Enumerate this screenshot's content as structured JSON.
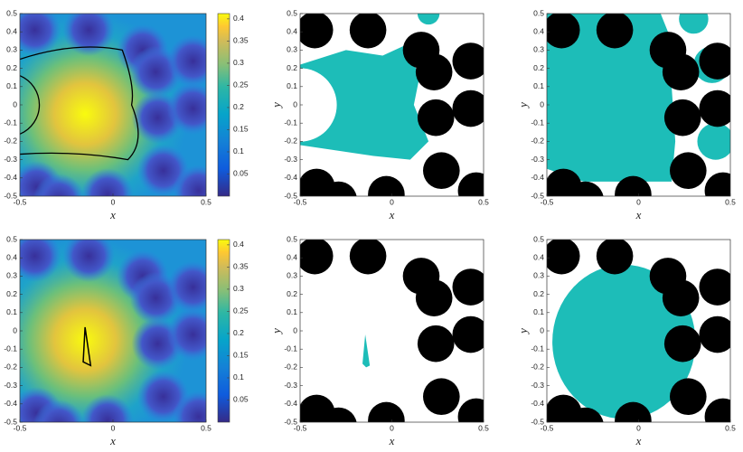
{
  "chart_data": [
    {
      "type": "heatmap",
      "xlabel": "x",
      "xlim": [
        -0.5,
        0.5
      ],
      "ylim": [
        -0.5,
        0.5
      ],
      "xticks": [
        -0.5,
        0,
        0.5
      ],
      "yticks": [
        -0.5,
        -0.4,
        -0.3,
        -0.2,
        -0.1,
        0,
        0.1,
        0.2,
        0.3,
        0.4,
        0.5
      ],
      "colorbar": {
        "clim": [
          0,
          0.412
        ],
        "ticks": [
          0.05,
          0.1,
          0.15,
          0.2,
          0.25,
          0.3,
          0.35,
          0.4
        ]
      },
      "obstacles": {
        "radius": 0.1,
        "x": [
          -0.42,
          -0.13,
          0.16,
          0.23,
          0.43,
          0.24,
          0.43,
          0.27,
          -0.41,
          -0.29,
          -0.03,
          0.46
        ],
        "y": [
          0.41,
          0.41,
          0.3,
          0.18,
          0.24,
          -0.07,
          -0.02,
          -0.36,
          -0.45,
          -0.52,
          -0.49,
          -0.47
        ]
      }
    },
    {
      "type": "region",
      "xlabel": "x",
      "ylabel": "y",
      "xlim": [
        -0.5,
        0.5
      ],
      "ylim": [
        -0.5,
        0.5
      ],
      "xticks": [
        -0.5,
        0,
        0.5
      ],
      "yticks": [
        -0.5,
        -0.4,
        -0.3,
        -0.2,
        -0.1,
        0,
        0.1,
        0.2,
        0.3,
        0.4,
        0.5
      ],
      "obstacles": {
        "radius": 0.1,
        "x": [
          -0.42,
          -0.13,
          0.16,
          0.23,
          0.43,
          0.24,
          0.43,
          0.27,
          -0.41,
          -0.29,
          -0.03,
          0.46
        ],
        "y": [
          0.41,
          0.41,
          0.3,
          0.18,
          0.24,
          -0.07,
          -0.02,
          -0.36,
          -0.45,
          -0.52,
          -0.49,
          -0.47
        ]
      }
    },
    {
      "type": "region",
      "xlabel": "x",
      "ylabel": "y",
      "xlim": [
        -0.5,
        0.5
      ],
      "ylim": [
        -0.5,
        0.5
      ],
      "xticks": [
        -0.5,
        0,
        0.5
      ],
      "yticks": [
        -0.5,
        -0.4,
        -0.3,
        -0.2,
        -0.1,
        0,
        0.1,
        0.2,
        0.3,
        0.4,
        0.5
      ],
      "obstacles": {
        "radius": 0.1,
        "x": [
          -0.42,
          -0.13,
          0.16,
          0.23,
          0.43,
          0.24,
          0.43,
          0.27,
          -0.41,
          -0.29,
          -0.03,
          0.46
        ],
        "y": [
          0.41,
          0.41,
          0.3,
          0.18,
          0.24,
          -0.07,
          -0.02,
          -0.36,
          -0.45,
          -0.52,
          -0.49,
          -0.47
        ]
      }
    },
    {
      "type": "heatmap",
      "xlabel": "x",
      "xlim": [
        -0.5,
        0.5
      ],
      "ylim": [
        -0.5,
        0.5
      ],
      "xticks": [
        -0.5,
        0,
        0.5
      ],
      "yticks": [
        -0.5,
        -0.4,
        -0.3,
        -0.2,
        -0.1,
        0,
        0.1,
        0.2,
        0.3,
        0.4,
        0.5
      ],
      "colorbar": {
        "clim": [
          0,
          0.412
        ],
        "ticks": [
          0.05,
          0.1,
          0.15,
          0.2,
          0.25,
          0.3,
          0.35,
          0.4
        ]
      },
      "obstacles": {
        "radius": 0.1,
        "x": [
          -0.42,
          -0.13,
          0.16,
          0.23,
          0.43,
          0.24,
          0.43,
          0.27,
          -0.41,
          -0.29,
          -0.03,
          0.46
        ],
        "y": [
          0.41,
          0.41,
          0.3,
          0.18,
          0.24,
          -0.07,
          -0.02,
          -0.36,
          -0.45,
          -0.52,
          -0.49,
          -0.47
        ]
      }
    },
    {
      "type": "region",
      "xlabel": "x",
      "ylabel": "y",
      "xlim": [
        -0.5,
        0.5
      ],
      "ylim": [
        -0.5,
        0.5
      ],
      "xticks": [
        -0.5,
        0,
        0.5
      ],
      "yticks": [
        -0.5,
        -0.4,
        -0.3,
        -0.2,
        -0.1,
        0,
        0.1,
        0.2,
        0.3,
        0.4,
        0.5
      ],
      "obstacles": {
        "radius": 0.1,
        "x": [
          -0.42,
          -0.13,
          0.16,
          0.23,
          0.43,
          0.24,
          0.43,
          0.27,
          -0.41,
          -0.29,
          -0.03,
          0.46
        ],
        "y": [
          0.41,
          0.41,
          0.3,
          0.18,
          0.24,
          -0.07,
          -0.02,
          -0.36,
          -0.45,
          -0.52,
          -0.49,
          -0.47
        ]
      }
    },
    {
      "type": "region",
      "xlabel": "x",
      "ylabel": "y",
      "xlim": [
        -0.5,
        0.5
      ],
      "ylim": [
        -0.5,
        0.5
      ],
      "xticks": [
        -0.5,
        0,
        0.5
      ],
      "yticks": [
        -0.5,
        -0.4,
        -0.3,
        -0.2,
        -0.1,
        0,
        0.1,
        0.2,
        0.3,
        0.4,
        0.5
      ],
      "obstacles": {
        "radius": 0.1,
        "x": [
          -0.42,
          -0.13,
          0.16,
          0.23,
          0.43,
          0.24,
          0.43,
          0.27,
          -0.41,
          -0.29,
          -0.03,
          0.46
        ],
        "y": [
          0.41,
          0.41,
          0.3,
          0.18,
          0.24,
          -0.07,
          -0.02,
          -0.36,
          -0.45,
          -0.52,
          -0.49,
          -0.47
        ]
      }
    }
  ]
}
